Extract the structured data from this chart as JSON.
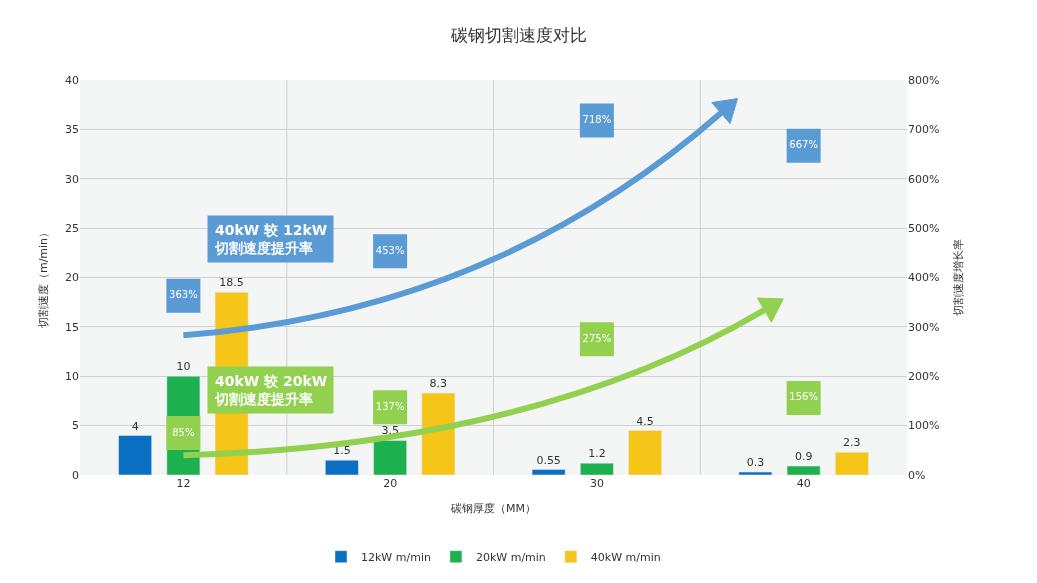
{
  "chart_data": {
    "type": "bar",
    "title": "碳钢切割速度对比",
    "xlabel": "碳钢厚度（MM）",
    "ylabel": "切割速度（m/min）",
    "y2label": "切割速度增长率",
    "categories": [
      "12",
      "20",
      "30",
      "40"
    ],
    "series": [
      {
        "name": "12kW m/min",
        "color": "#0a6fc2",
        "values": [
          4,
          1.5,
          0.55,
          0.3
        ]
      },
      {
        "name": "20kW m/min",
        "color": "#1db04f",
        "values": [
          10,
          3.5,
          1.2,
          0.9
        ]
      },
      {
        "name": "40kW m/min",
        "color": "#f5c518",
        "values": [
          18.5,
          8.3,
          4.5,
          2.3
        ]
      },
      {
        "name": "40kW 较 12kW\n切割速度提升率",
        "type": "scatter",
        "axis": "y2",
        "marker": "square",
        "color": "#5b9bd5",
        "values": [
          363,
          453,
          718,
          667
        ],
        "value_labels": [
          "363%",
          "453%",
          "718%",
          "667%"
        ]
      },
      {
        "name": "40kW 较 20kW\n切割速度提升率",
        "type": "scatter",
        "axis": "y2",
        "marker": "square",
        "color": "#92d050",
        "values": [
          85,
          137,
          275,
          156
        ],
        "value_labels": [
          "85%",
          "137%",
          "275%",
          "156%"
        ]
      }
    ],
    "data_labels": true,
    "ylim": [
      0,
      40
    ],
    "yticks": [
      0,
      5,
      10,
      15,
      20,
      25,
      30,
      35,
      40
    ],
    "y2lim": [
      0,
      800
    ],
    "y2ticks": [
      {
        "value": 0,
        "label": "0%"
      },
      {
        "value": 100,
        "label": "100%"
      },
      {
        "value": 200,
        "label": "200%"
      },
      {
        "value": 300,
        "label": "300%"
      },
      {
        "value": 400,
        "label": "400%"
      },
      {
        "value": 500,
        "label": "500%"
      },
      {
        "value": 600,
        "label": "600%"
      },
      {
        "value": 700,
        "label": "700%"
      },
      {
        "value": 800,
        "label": "800%"
      }
    ],
    "grid": true,
    "legend": "bottom"
  }
}
